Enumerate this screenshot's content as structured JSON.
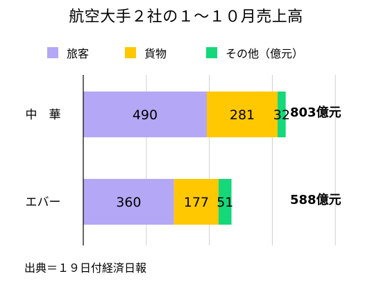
{
  "chart_data": {
    "type": "bar",
    "orientation": "horizontal",
    "stacked": true,
    "title": "航空大手２社の１～１０月売上高",
    "categories": [
      "中　華",
      "エバー"
    ],
    "series": [
      {
        "name": "旅客",
        "values": [
          490,
          360
        ],
        "color": "#b4a7f5"
      },
      {
        "name": "貨物",
        "values": [
          281,
          177
        ],
        "color": "#ffc800"
      },
      {
        "name": "その他（億元）",
        "values": [
          32,
          51
        ],
        "color": "#14d87a"
      }
    ],
    "totals": [
      "803億元",
      "588億元"
    ],
    "xlim": [
      0,
      1000
    ],
    "grid": true,
    "legend_position": "top"
  },
  "source": "出典＝１９日付経済日報"
}
